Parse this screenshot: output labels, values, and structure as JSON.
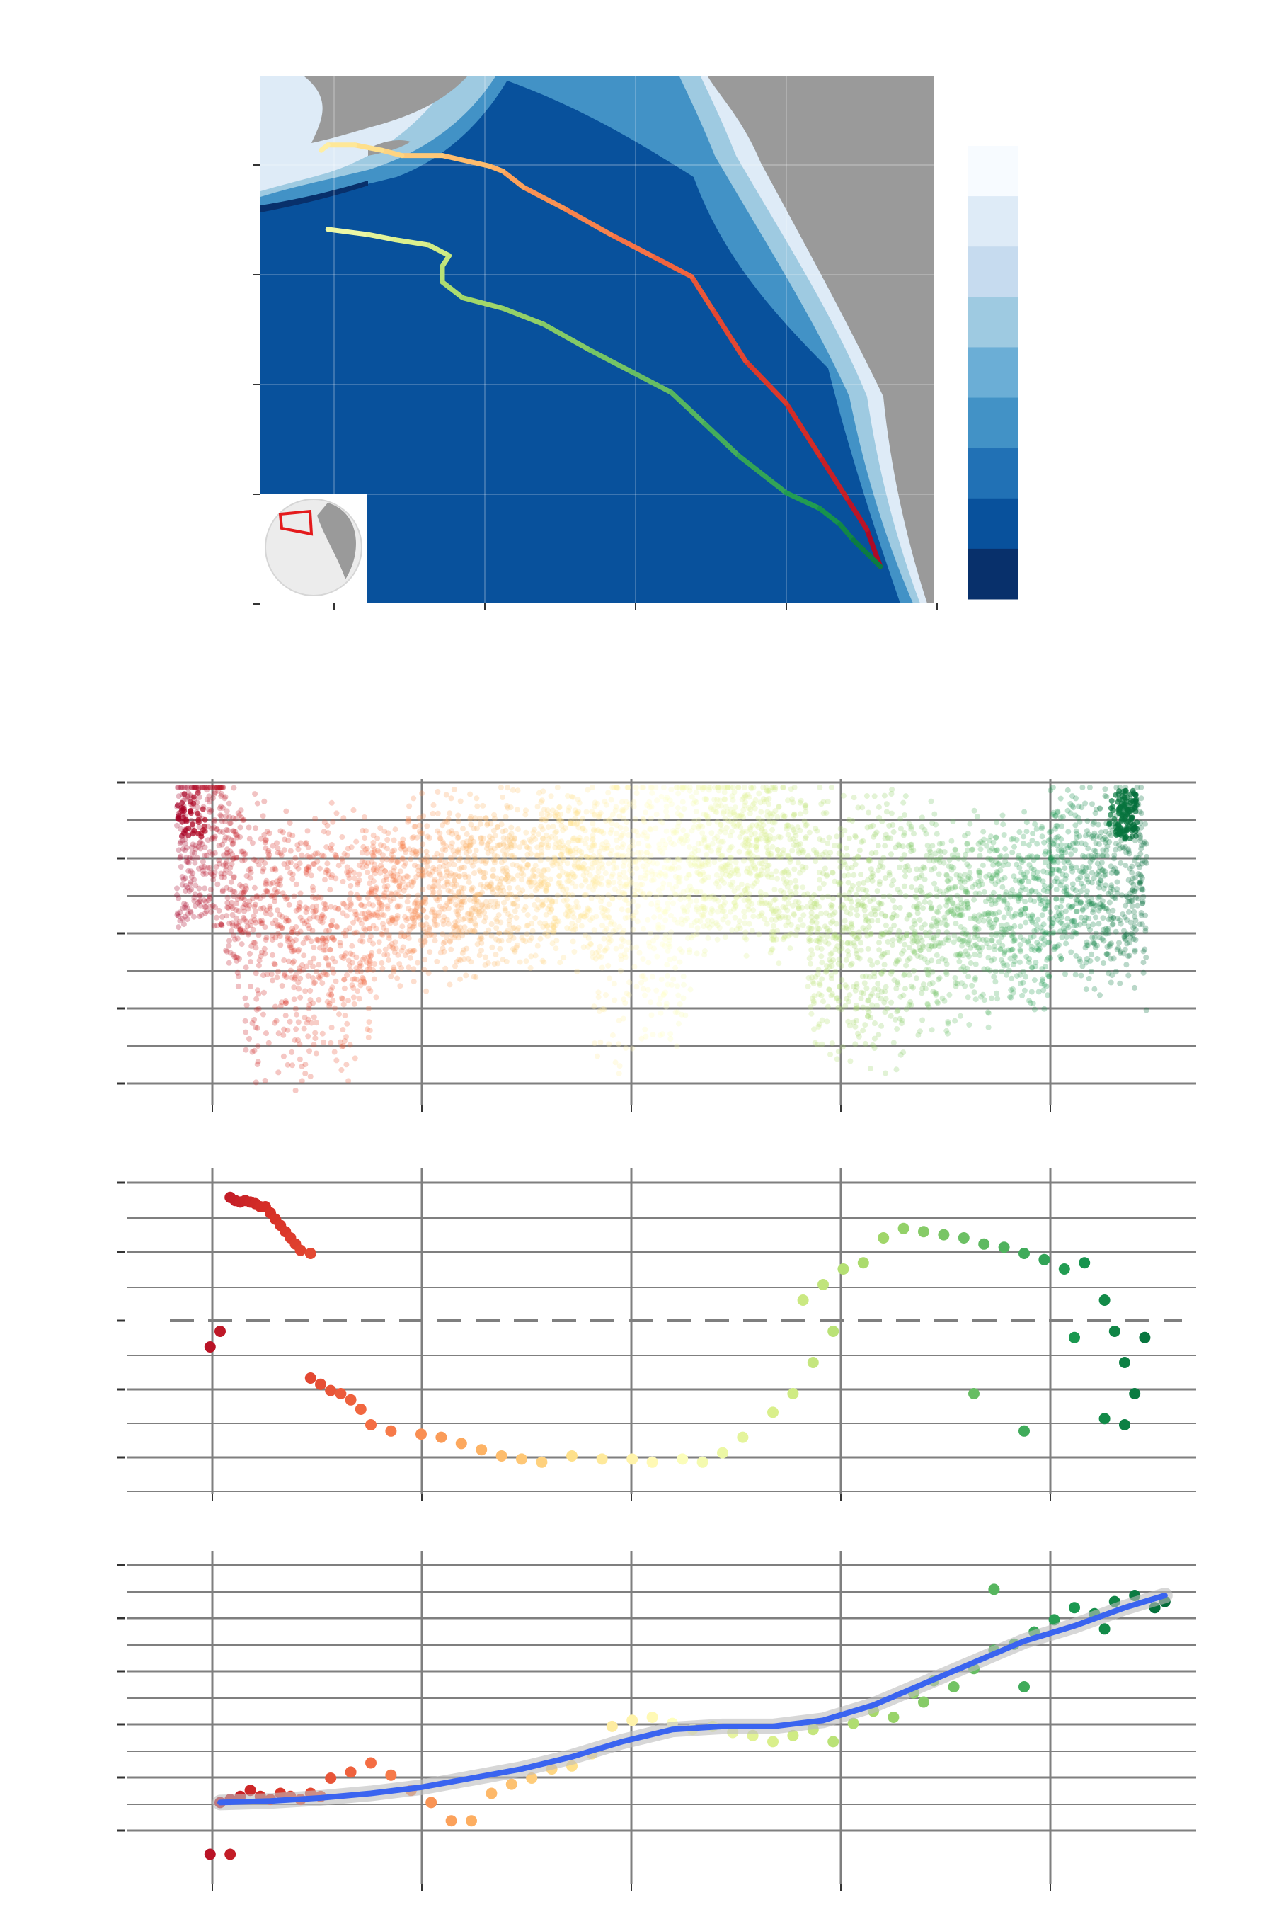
{
  "colors": {
    "ocean_scale": [
      "#f7fbff",
      "#deebf7",
      "#c6dbef",
      "#9ecae1",
      "#6baed6",
      "#4292c6",
      "#2171b5",
      "#08519c",
      "#08306b"
    ],
    "rdylgn": [
      "#a50026",
      "#d73027",
      "#f46d43",
      "#fdae61",
      "#fee08b",
      "#ffffbf",
      "#d9ef8b",
      "#a6d96a",
      "#66bd63",
      "#1a9850",
      "#006837"
    ],
    "land": "#9a9a9a",
    "smooth_line": "#3a64f0",
    "grid": "#7f7f7f",
    "inset_box": "#e41a1c"
  },
  "chart_data": [
    {
      "type": "map",
      "axes": {
        "x_tick_count": 5,
        "y_tick_count": 5
      },
      "legend": {
        "placement": "right",
        "bins": 9
      },
      "inset": {
        "placement": "bottom-left",
        "depicts": "globe-locator"
      },
      "track": {
        "outbound": [
          [
            0.92,
            0.93
          ],
          [
            0.9,
            0.86
          ],
          [
            0.87,
            0.8
          ],
          [
            0.83,
            0.72
          ],
          [
            0.78,
            0.62
          ],
          [
            0.72,
            0.54
          ],
          [
            0.67,
            0.44
          ],
          [
            0.64,
            0.38
          ],
          [
            0.58,
            0.34
          ],
          [
            0.52,
            0.3
          ],
          [
            0.45,
            0.25
          ],
          [
            0.39,
            0.21
          ],
          [
            0.36,
            0.18
          ],
          [
            0.34,
            0.17
          ],
          [
            0.27,
            0.15
          ],
          [
            0.21,
            0.15
          ],
          [
            0.18,
            0.14
          ],
          [
            0.14,
            0.13
          ],
          [
            0.1,
            0.13
          ],
          [
            0.09,
            0.14
          ]
        ],
        "return": [
          [
            0.1,
            0.29
          ],
          [
            0.16,
            0.3
          ],
          [
            0.2,
            0.31
          ],
          [
            0.25,
            0.32
          ],
          [
            0.28,
            0.34
          ],
          [
            0.27,
            0.36
          ],
          [
            0.27,
            0.39
          ],
          [
            0.3,
            0.42
          ],
          [
            0.36,
            0.44
          ],
          [
            0.42,
            0.47
          ],
          [
            0.49,
            0.52
          ],
          [
            0.55,
            0.56
          ],
          [
            0.61,
            0.6
          ],
          [
            0.66,
            0.66
          ],
          [
            0.71,
            0.72
          ],
          [
            0.78,
            0.79
          ],
          [
            0.83,
            0.82
          ],
          [
            0.86,
            0.85
          ],
          [
            0.88,
            0.88
          ],
          [
            0.92,
            0.93
          ]
        ]
      }
    },
    {
      "type": "scatter",
      "x_tick_count": 5,
      "y_tick_count": 5,
      "y_scale": "depth",
      "points_estimated": "dense-cloud"
    },
    {
      "type": "scatter",
      "x_tick_count": 5,
      "y_tick_count": 5,
      "reference_line": "dashed-horizontal",
      "points": [
        [
          0.06,
          0.93
        ],
        [
          0.065,
          0.92
        ],
        [
          0.07,
          0.915
        ],
        [
          0.075,
          0.92
        ],
        [
          0.08,
          0.915
        ],
        [
          0.085,
          0.91
        ],
        [
          0.09,
          0.9
        ],
        [
          0.095,
          0.9
        ],
        [
          0.1,
          0.88
        ],
        [
          0.105,
          0.86
        ],
        [
          0.11,
          0.84
        ],
        [
          0.115,
          0.82
        ],
        [
          0.12,
          0.8
        ],
        [
          0.125,
          0.78
        ],
        [
          0.13,
          0.76
        ],
        [
          0.14,
          0.75
        ],
        [
          0.05,
          0.5
        ],
        [
          0.04,
          0.45
        ],
        [
          0.14,
          0.35
        ],
        [
          0.15,
          0.33
        ],
        [
          0.16,
          0.31
        ],
        [
          0.17,
          0.3
        ],
        [
          0.18,
          0.28
        ],
        [
          0.19,
          0.25
        ],
        [
          0.2,
          0.2
        ],
        [
          0.22,
          0.18
        ],
        [
          0.25,
          0.17
        ],
        [
          0.27,
          0.16
        ],
        [
          0.29,
          0.14
        ],
        [
          0.31,
          0.12
        ],
        [
          0.33,
          0.1
        ],
        [
          0.35,
          0.09
        ],
        [
          0.37,
          0.08
        ],
        [
          0.4,
          0.1
        ],
        [
          0.43,
          0.09
        ],
        [
          0.46,
          0.09
        ],
        [
          0.48,
          0.08
        ],
        [
          0.51,
          0.09
        ],
        [
          0.53,
          0.08
        ],
        [
          0.55,
          0.11
        ],
        [
          0.57,
          0.16
        ],
        [
          0.6,
          0.24
        ],
        [
          0.62,
          0.3
        ],
        [
          0.64,
          0.4
        ],
        [
          0.66,
          0.5
        ],
        [
          0.63,
          0.6
        ],
        [
          0.65,
          0.65
        ],
        [
          0.67,
          0.7
        ],
        [
          0.69,
          0.72
        ],
        [
          0.71,
          0.8
        ],
        [
          0.73,
          0.83
        ],
        [
          0.75,
          0.82
        ],
        [
          0.77,
          0.81
        ],
        [
          0.79,
          0.8
        ],
        [
          0.81,
          0.78
        ],
        [
          0.83,
          0.77
        ],
        [
          0.85,
          0.75
        ],
        [
          0.87,
          0.73
        ],
        [
          0.89,
          0.7
        ],
        [
          0.91,
          0.72
        ],
        [
          0.93,
          0.6
        ],
        [
          0.94,
          0.5
        ],
        [
          0.95,
          0.4
        ],
        [
          0.96,
          0.3
        ],
        [
          0.95,
          0.2
        ],
        [
          0.93,
          0.22
        ],
        [
          0.97,
          0.48
        ],
        [
          0.9,
          0.48
        ],
        [
          0.8,
          0.3
        ],
        [
          0.85,
          0.18
        ]
      ]
    },
    {
      "type": "scatter",
      "x_tick_count": 5,
      "y_tick_count": 5,
      "trend": "loess",
      "trend_line": [
        [
          0.05,
          0.22
        ],
        [
          0.1,
          0.225
        ],
        [
          0.15,
          0.235
        ],
        [
          0.2,
          0.25
        ],
        [
          0.25,
          0.27
        ],
        [
          0.3,
          0.3
        ],
        [
          0.35,
          0.33
        ],
        [
          0.4,
          0.37
        ],
        [
          0.45,
          0.42
        ],
        [
          0.5,
          0.46
        ],
        [
          0.55,
          0.47
        ],
        [
          0.6,
          0.47
        ],
        [
          0.65,
          0.49
        ],
        [
          0.7,
          0.54
        ],
        [
          0.75,
          0.61
        ],
        [
          0.8,
          0.68
        ],
        [
          0.85,
          0.75
        ],
        [
          0.9,
          0.8
        ],
        [
          0.95,
          0.86
        ],
        [
          0.99,
          0.9
        ]
      ],
      "points": [
        [
          0.05,
          0.22
        ],
        [
          0.06,
          0.23
        ],
        [
          0.07,
          0.24
        ],
        [
          0.08,
          0.26
        ],
        [
          0.09,
          0.24
        ],
        [
          0.1,
          0.23
        ],
        [
          0.11,
          0.25
        ],
        [
          0.12,
          0.24
        ],
        [
          0.13,
          0.23
        ],
        [
          0.14,
          0.25
        ],
        [
          0.15,
          0.24
        ],
        [
          0.04,
          0.05
        ],
        [
          0.06,
          0.05
        ],
        [
          0.16,
          0.3
        ],
        [
          0.18,
          0.32
        ],
        [
          0.2,
          0.35
        ],
        [
          0.22,
          0.31
        ],
        [
          0.24,
          0.26
        ],
        [
          0.26,
          0.22
        ],
        [
          0.28,
          0.16
        ],
        [
          0.3,
          0.16
        ],
        [
          0.32,
          0.25
        ],
        [
          0.34,
          0.28
        ],
        [
          0.36,
          0.3
        ],
        [
          0.38,
          0.33
        ],
        [
          0.4,
          0.34
        ],
        [
          0.42,
          0.38
        ],
        [
          0.44,
          0.47
        ],
        [
          0.46,
          0.49
        ],
        [
          0.48,
          0.5
        ],
        [
          0.5,
          0.48
        ],
        [
          0.52,
          0.46
        ],
        [
          0.54,
          0.47
        ],
        [
          0.56,
          0.45
        ],
        [
          0.58,
          0.44
        ],
        [
          0.6,
          0.42
        ],
        [
          0.62,
          0.44
        ],
        [
          0.64,
          0.46
        ],
        [
          0.66,
          0.42
        ],
        [
          0.68,
          0.48
        ],
        [
          0.7,
          0.52
        ],
        [
          0.72,
          0.5
        ],
        [
          0.74,
          0.58
        ],
        [
          0.76,
          0.62
        ],
        [
          0.78,
          0.6
        ],
        [
          0.8,
          0.66
        ],
        [
          0.82,
          0.72
        ],
        [
          0.84,
          0.74
        ],
        [
          0.86,
          0.78
        ],
        [
          0.88,
          0.82
        ],
        [
          0.9,
          0.86
        ],
        [
          0.92,
          0.84
        ],
        [
          0.94,
          0.88
        ],
        [
          0.96,
          0.9
        ],
        [
          0.98,
          0.86
        ],
        [
          0.99,
          0.88
        ],
        [
          0.82,
          0.92
        ],
        [
          0.75,
          0.55
        ],
        [
          0.85,
          0.6
        ],
        [
          0.93,
          0.79
        ]
      ]
    }
  ]
}
